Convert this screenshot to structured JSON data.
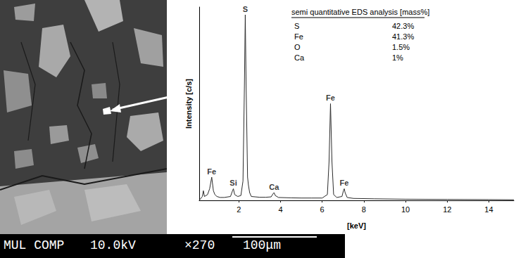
{
  "micrograph": {
    "info_bar": [
      "MUL COMP",
      "10.0kV",
      "×270",
      "100μm"
    ]
  },
  "chart_data": {
    "type": "line",
    "xlabel": "[keV]",
    "ylabel": "Intensity [c/s]",
    "color": "#2b2b2b",
    "x": [
      0.1,
      0.25,
      0.3,
      0.35,
      0.5,
      0.6,
      0.7,
      0.78,
      0.85,
      0.95,
      1.1,
      1.3,
      1.6,
      1.7,
      1.74,
      1.8,
      1.95,
      2.1,
      2.2,
      2.27,
      2.31,
      2.35,
      2.42,
      2.46,
      2.52,
      2.6,
      2.8,
      3.0,
      3.3,
      3.55,
      3.65,
      3.69,
      3.75,
      3.9,
      4.5,
      5.0,
      5.5,
      6.0,
      6.25,
      6.33,
      6.4,
      6.47,
      6.55,
      6.7,
      6.95,
      7.02,
      7.06,
      7.1,
      7.2,
      7.5,
      8.5,
      10,
      12,
      14,
      15.2
    ],
    "values": [
      0,
      2,
      5,
      2,
      3,
      6,
      12,
      5,
      3,
      2,
      1.5,
      1.5,
      2,
      5,
      6,
      3,
      2,
      2.5,
      10,
      60,
      96,
      60,
      12,
      8,
      4,
      2,
      1.8,
      1.6,
      1.6,
      1.8,
      3.5,
      4,
      2.5,
      1.5,
      1.3,
      1.2,
      1.2,
      1.2,
      3,
      20,
      50,
      20,
      3,
      1.5,
      2,
      5,
      6,
      4,
      1.5,
      1,
      0.8,
      0.6,
      0.5,
      0.4,
      0.3
    ],
    "xlim": [
      0.1,
      15.2
    ],
    "xticks": [
      2,
      4,
      6,
      8,
      10,
      12,
      14
    ],
    "ylim": [
      0,
      100
    ],
    "tick_labels": "x",
    "grid": false,
    "annotations": [
      {
        "text": "Fe",
        "x": 0.7,
        "y": 12
      },
      {
        "text": "Si",
        "x": 1.74,
        "y": 6
      },
      {
        "text": "S",
        "x": 2.31,
        "y": 96
      },
      {
        "text": "Ca",
        "x": 3.69,
        "y": 4
      },
      {
        "text": "Fe",
        "x": 6.4,
        "y": 50
      },
      {
        "text": "Fe",
        "x": 7.06,
        "y": 6
      }
    ],
    "inset": {
      "title": "semi quantitative EDS analysis [mass%]",
      "rows": [
        [
          "S",
          "42.3%"
        ],
        [
          "Fe",
          "41.3%"
        ],
        [
          "O",
          "1.5%"
        ],
        [
          "Ca",
          "1%"
        ]
      ]
    }
  }
}
